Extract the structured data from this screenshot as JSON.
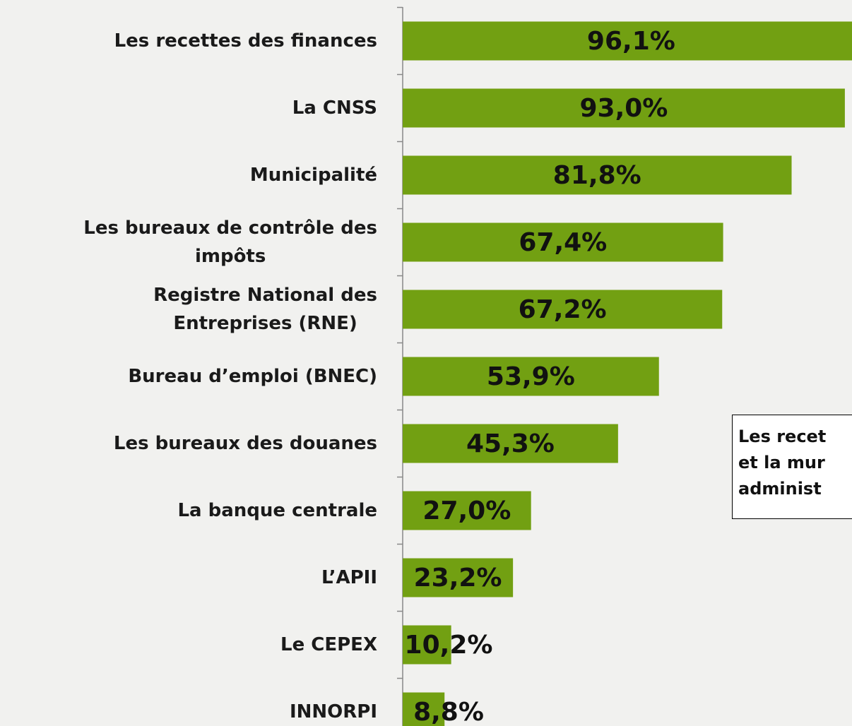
{
  "chart_data": {
    "type": "bar",
    "orientation": "horizontal",
    "categories": [
      "Les recettes des finances",
      "La CNSS",
      "Municipalité",
      "Les bureaux de contrôle des\nimpôts",
      "Registre National des\nEntreprises (RNE)",
      "Bureau d’emploi (BNEC)",
      "Les bureaux des douanes",
      "La banque centrale",
      "L’APII",
      "Le CEPEX",
      "INNORPI"
    ],
    "values": [
      96.1,
      93.0,
      81.8,
      67.4,
      67.2,
      53.9,
      45.3,
      27.0,
      23.2,
      10.2,
      8.8
    ],
    "value_labels": [
      "96,1%",
      "93,0%",
      "81,8%",
      "67,4%",
      "67,2%",
      "53,9%",
      "45,3%",
      "27,0%",
      "23,2%",
      "10,2%",
      "8,8%"
    ],
    "color": "#72a012",
    "annotation": [
      "Les recet",
      "et la mur",
      "administ"
    ]
  }
}
